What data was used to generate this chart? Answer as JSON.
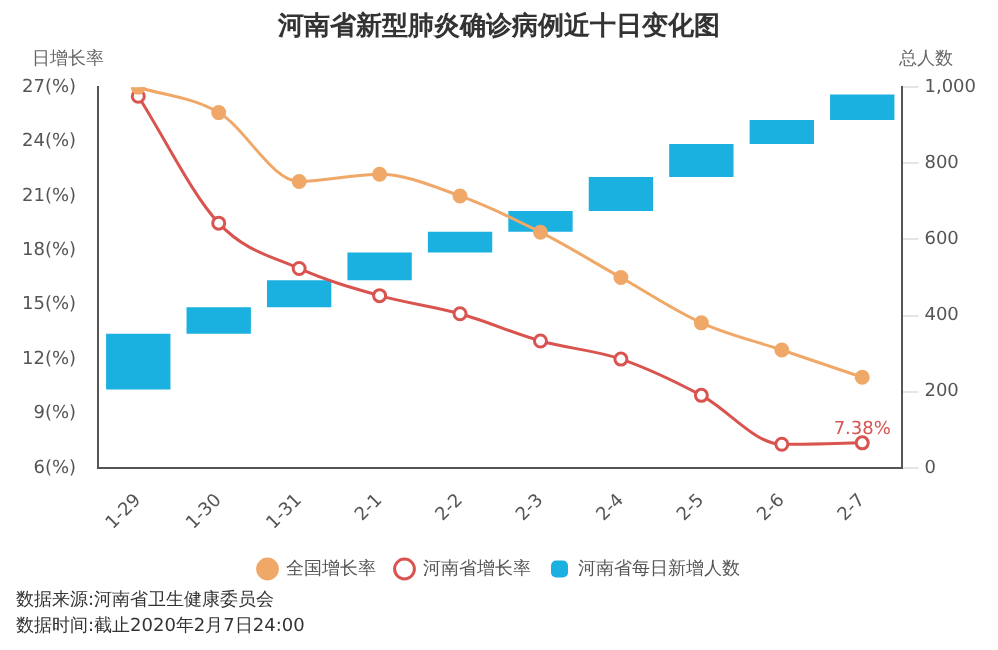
{
  "chart_data": {
    "type": "line",
    "title": "河南省新型肺炎确诊病例近十日变化图",
    "ylabel": "日增长率",
    "y2label": "总人数",
    "categories": [
      "1-29",
      "1-30",
      "1-31",
      "2-1",
      "2-2",
      "2-3",
      "2-4",
      "2-5",
      "2-6",
      "2-7"
    ],
    "series": [
      {
        "name": "全国增长率",
        "color": "#f0a868",
        "marker": "circle",
        "values": [
          27,
          25.6,
          21.8,
          22.2,
          21,
          19,
          16.5,
          14,
          12.5,
          11
        ]
      },
      {
        "name": "河南省增长率",
        "color": "#d9534f",
        "marker": "circle",
        "values": [
          26.5,
          19.5,
          17,
          15.5,
          14.5,
          13,
          12,
          10,
          7.3,
          7.38
        ],
        "value_labels": [
          null,
          null,
          null,
          null,
          null,
          null,
          null,
          null,
          null,
          "7.38%"
        ]
      },
      {
        "name": "河南省每日新增人数",
        "type": "bar",
        "axis": "y2",
        "color": "#1ab0e0",
        "values": [
          146,
          70,
          71,
          73,
          54,
          55,
          89,
          87,
          63,
          67
        ],
        "base": [
          206,
          352,
          422,
          493,
          566,
          620,
          675,
          764,
          851,
          914
        ]
      }
    ],
    "ylim": [
      6,
      27
    ],
    "yticks": [
      {
        "value": 6,
        "label": "6(%)"
      },
      {
        "value": 9,
        "label": "9(%)"
      },
      {
        "value": 12,
        "label": "12(%)"
      },
      {
        "value": 15,
        "label": "15(%)"
      },
      {
        "value": 18,
        "label": "18(%)"
      },
      {
        "value": 21,
        "label": "21(%)"
      },
      {
        "value": 24,
        "label": "24(%)"
      },
      {
        "value": 27,
        "label": "27(%)"
      }
    ],
    "y2lim": [
      0,
      1000
    ],
    "y2ticks": [
      0,
      200,
      400,
      600,
      800,
      {
        "value": 1000,
        "label": "1,000"
      }
    ],
    "grid": false,
    "legend": "bottom",
    "annotations": [
      "数据来源:河南省卫生健康委员会",
      "数据时间:截止2020年2月7日24:00"
    ]
  }
}
